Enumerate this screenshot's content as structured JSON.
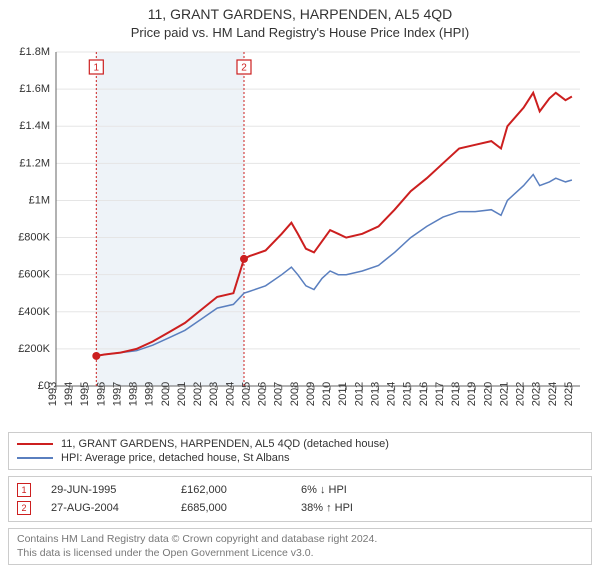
{
  "title_line1": "11, GRANT GARDENS, HARPENDEN, AL5 4QD",
  "title_line2": "Price paid vs. HM Land Registry's House Price Index (HPI)",
  "chart": {
    "type": "line",
    "background_color": "#ffffff",
    "grid_color": "#e5e5e5",
    "axis_color": "#666666",
    "shaded_band_color": "#eef3f8",
    "x_years": [
      1993,
      1994,
      1995,
      1996,
      1997,
      1998,
      1999,
      2000,
      2001,
      2002,
      2003,
      2004,
      2005,
      2006,
      2007,
      2008,
      2009,
      2010,
      2011,
      2012,
      2013,
      2014,
      2015,
      2016,
      2017,
      2018,
      2019,
      2020,
      2021,
      2022,
      2023,
      2024,
      2025
    ],
    "xlim": [
      1993,
      2025.5
    ],
    "ylim": [
      0,
      1.8
    ],
    "ytick_step": 0.2,
    "ytick_labels": [
      "£0",
      "£200K",
      "£400K",
      "£600K",
      "£800K",
      "£1M",
      "£1.2M",
      "£1.4M",
      "£1.6M",
      "£1.8M"
    ],
    "shaded_band": {
      "from_year": 1995.5,
      "to_year": 2004.66
    },
    "markers": [
      {
        "num": "1",
        "year": 1995.5,
        "price": 0.162,
        "color": "#cc1f1f"
      },
      {
        "num": "2",
        "year": 2004.66,
        "price": 0.685,
        "color": "#cc1f1f"
      }
    ],
    "series_a": {
      "color": "#cc1f1f",
      "width": 2,
      "points": [
        [
          1995.5,
          0.162
        ],
        [
          1996,
          0.17
        ],
        [
          1997,
          0.18
        ],
        [
          1998,
          0.2
        ],
        [
          1999,
          0.24
        ],
        [
          2000,
          0.29
        ],
        [
          2001,
          0.34
        ],
        [
          2002,
          0.41
        ],
        [
          2003,
          0.48
        ],
        [
          2004,
          0.5
        ],
        [
          2004.66,
          0.685
        ],
        [
          2005,
          0.7
        ],
        [
          2006,
          0.73
        ],
        [
          2007,
          0.82
        ],
        [
          2007.6,
          0.88
        ],
        [
          2008,
          0.82
        ],
        [
          2008.5,
          0.74
        ],
        [
          2009,
          0.72
        ],
        [
          2009.5,
          0.78
        ],
        [
          2010,
          0.84
        ],
        [
          2010.5,
          0.82
        ],
        [
          2011,
          0.8
        ],
        [
          2012,
          0.82
        ],
        [
          2013,
          0.86
        ],
        [
          2014,
          0.95
        ],
        [
          2015,
          1.05
        ],
        [
          2016,
          1.12
        ],
        [
          2017,
          1.2
        ],
        [
          2018,
          1.28
        ],
        [
          2019,
          1.3
        ],
        [
          2020,
          1.32
        ],
        [
          2020.6,
          1.28
        ],
        [
          2021,
          1.4
        ],
        [
          2022,
          1.5
        ],
        [
          2022.6,
          1.58
        ],
        [
          2023,
          1.48
        ],
        [
          2023.6,
          1.55
        ],
        [
          2024,
          1.58
        ],
        [
          2024.6,
          1.54
        ],
        [
          2025,
          1.56
        ]
      ]
    },
    "series_b": {
      "color": "#5a7fbf",
      "width": 1.5,
      "points": [
        [
          1995.5,
          0.162
        ],
        [
          1996,
          0.17
        ],
        [
          1997,
          0.18
        ],
        [
          1998,
          0.19
        ],
        [
          1999,
          0.22
        ],
        [
          2000,
          0.26
        ],
        [
          2001,
          0.3
        ],
        [
          2002,
          0.36
        ],
        [
          2003,
          0.42
        ],
        [
          2004,
          0.44
        ],
        [
          2004.66,
          0.5
        ],
        [
          2005,
          0.51
        ],
        [
          2006,
          0.54
        ],
        [
          2007,
          0.6
        ],
        [
          2007.6,
          0.64
        ],
        [
          2008,
          0.6
        ],
        [
          2008.5,
          0.54
        ],
        [
          2009,
          0.52
        ],
        [
          2009.5,
          0.58
        ],
        [
          2010,
          0.62
        ],
        [
          2010.5,
          0.6
        ],
        [
          2011,
          0.6
        ],
        [
          2012,
          0.62
        ],
        [
          2013,
          0.65
        ],
        [
          2014,
          0.72
        ],
        [
          2015,
          0.8
        ],
        [
          2016,
          0.86
        ],
        [
          2017,
          0.91
        ],
        [
          2018,
          0.94
        ],
        [
          2019,
          0.94
        ],
        [
          2020,
          0.95
        ],
        [
          2020.6,
          0.92
        ],
        [
          2021,
          1.0
        ],
        [
          2022,
          1.08
        ],
        [
          2022.6,
          1.14
        ],
        [
          2023,
          1.08
        ],
        [
          2023.6,
          1.1
        ],
        [
          2024,
          1.12
        ],
        [
          2024.6,
          1.1
        ],
        [
          2025,
          1.11
        ]
      ]
    }
  },
  "legend": {
    "a": "11, GRANT GARDENS, HARPENDEN, AL5 4QD (detached house)",
    "b": "HPI: Average price, detached house, St Albans"
  },
  "transactions": [
    {
      "num": "1",
      "date": "29-JUN-1995",
      "price": "£162,000",
      "delta": "6% ↓ HPI",
      "color": "#cc1f1f"
    },
    {
      "num": "2",
      "date": "27-AUG-2004",
      "price": "£685,000",
      "delta": "38% ↑ HPI",
      "color": "#cc1f1f"
    }
  ],
  "footer_line1": "Contains HM Land Registry data © Crown copyright and database right 2024.",
  "footer_line2": "This data is licensed under the Open Government Licence v3.0."
}
